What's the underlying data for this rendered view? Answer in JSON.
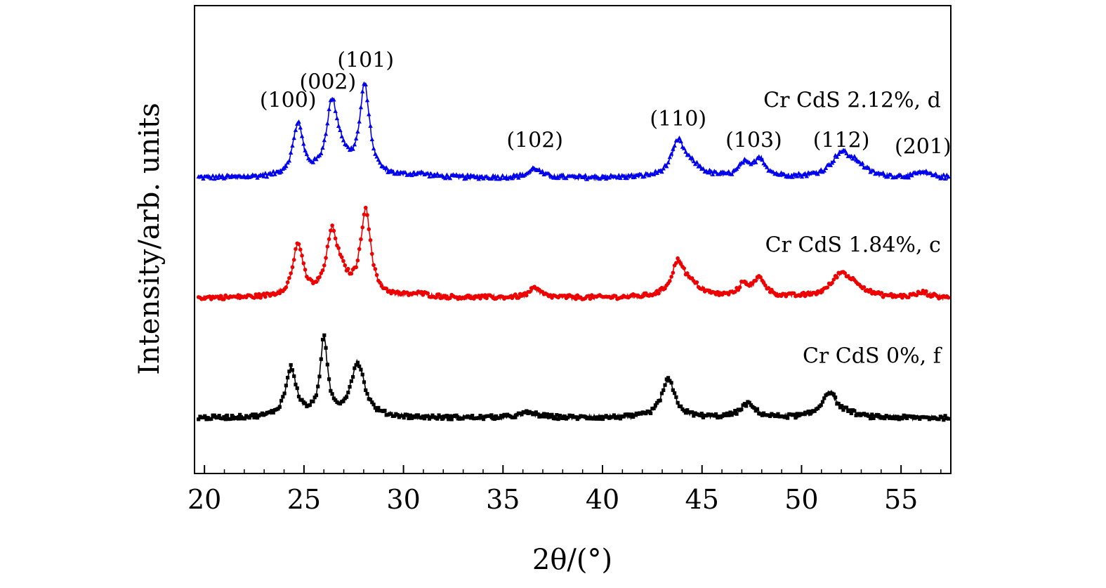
{
  "chart_data": {
    "type": "line",
    "title": "",
    "xlabel": "2θ/(°)",
    "ylabel": "Intensity/arb. units",
    "xlim": [
      19.5,
      57.5
    ],
    "ylim": [
      -0.9,
      6.7
    ],
    "xticks": [
      20,
      25,
      30,
      35,
      40,
      45,
      50,
      55
    ],
    "grid": false,
    "yticks_shown": false,
    "series": [
      {
        "name": "Cr CdS 2.12%, d",
        "color": "#0000ee",
        "marker": "triangle",
        "offset": 3.9,
        "peaks": [
          {
            "x": 24.7,
            "h": 0.85,
            "w": 0.3
          },
          {
            "x": 26.4,
            "h": 1.1,
            "w": 0.33
          },
          {
            "x": 26.85,
            "h": 0.25,
            "w": 0.45
          },
          {
            "x": 28.05,
            "h": 1.45,
            "w": 0.3
          },
          {
            "x": 30.8,
            "h": 0.05,
            "w": 0.6
          },
          {
            "x": 36.6,
            "h": 0.15,
            "w": 0.35
          },
          {
            "x": 43.8,
            "h": 0.55,
            "w": 0.4
          },
          {
            "x": 44.5,
            "h": 0.15,
            "w": 0.6
          },
          {
            "x": 47.1,
            "h": 0.2,
            "w": 0.3
          },
          {
            "x": 47.9,
            "h": 0.3,
            "w": 0.35
          },
          {
            "x": 52.0,
            "h": 0.38,
            "w": 0.6
          },
          {
            "x": 52.8,
            "h": 0.15,
            "w": 0.5
          },
          {
            "x": 56.1,
            "h": 0.08,
            "w": 0.4
          }
        ]
      },
      {
        "name": "Cr CdS 1.84%, c",
        "color": "#ee0000",
        "marker": "circle",
        "offset": 1.95,
        "peaks": [
          {
            "x": 24.7,
            "h": 0.85,
            "w": 0.3
          },
          {
            "x": 26.4,
            "h": 0.95,
            "w": 0.33
          },
          {
            "x": 26.85,
            "h": 0.25,
            "w": 0.45
          },
          {
            "x": 28.1,
            "h": 1.4,
            "w": 0.3
          },
          {
            "x": 30.8,
            "h": 0.05,
            "w": 0.6
          },
          {
            "x": 36.6,
            "h": 0.15,
            "w": 0.35
          },
          {
            "x": 43.8,
            "h": 0.55,
            "w": 0.4
          },
          {
            "x": 44.5,
            "h": 0.15,
            "w": 0.6
          },
          {
            "x": 47.1,
            "h": 0.2,
            "w": 0.3
          },
          {
            "x": 47.9,
            "h": 0.3,
            "w": 0.35
          },
          {
            "x": 52.0,
            "h": 0.38,
            "w": 0.6
          },
          {
            "x": 52.8,
            "h": 0.12,
            "w": 0.5
          },
          {
            "x": 56.1,
            "h": 0.08,
            "w": 0.4
          }
        ]
      },
      {
        "name": "Cr CdS 0%, f",
        "color": "#000000",
        "marker": "square",
        "offset": 0.0,
        "peaks": [
          {
            "x": 24.35,
            "h": 0.8,
            "w": 0.32
          },
          {
            "x": 26.0,
            "h": 1.25,
            "w": 0.22
          },
          {
            "x": 27.7,
            "h": 0.88,
            "w": 0.42
          },
          {
            "x": 36.3,
            "h": 0.08,
            "w": 0.6
          },
          {
            "x": 43.3,
            "h": 0.62,
            "w": 0.4
          },
          {
            "x": 47.3,
            "h": 0.22,
            "w": 0.45
          },
          {
            "x": 51.4,
            "h": 0.42,
            "w": 0.45
          },
          {
            "x": 52.4,
            "h": 0.05,
            "w": 0.4
          }
        ]
      }
    ],
    "annotations": [
      {
        "text": "(100)",
        "x": 24.2,
        "y": 5.05
      },
      {
        "text": "(002)",
        "x": 26.2,
        "y": 5.35
      },
      {
        "text": "(101)",
        "x": 28.1,
        "y": 5.7
      },
      {
        "text": "(102)",
        "x": 36.6,
        "y": 4.4
      },
      {
        "text": "(110)",
        "x": 43.8,
        "y": 4.75
      },
      {
        "text": "(103)",
        "x": 47.6,
        "y": 4.4
      },
      {
        "text": "(112)",
        "x": 52.0,
        "y": 4.4
      },
      {
        "text": "(201)",
        "x": 56.1,
        "y": 4.3
      }
    ],
    "series_labels": [
      {
        "text": "Cr CdS 2.12%, d",
        "x": 57.0,
        "y": 5.05
      },
      {
        "text": "Cr CdS 1.84%, c",
        "x": 57.0,
        "y": 2.7
      },
      {
        "text": "Cr CdS 0%, f",
        "x": 57.0,
        "y": 0.9
      }
    ]
  }
}
